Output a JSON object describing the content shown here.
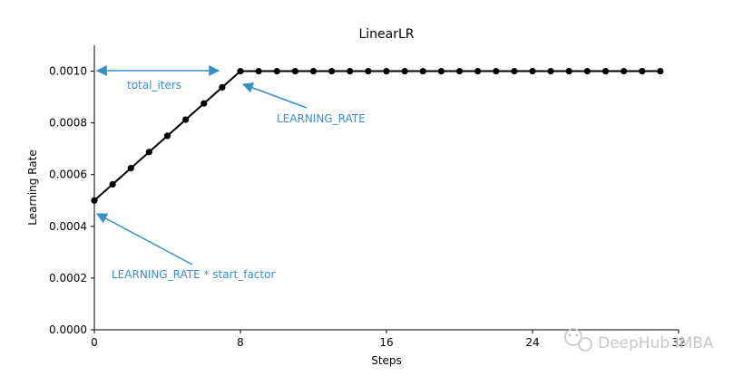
{
  "chart_data": {
    "type": "line",
    "title": "LinearLR",
    "xlabel": "Steps",
    "ylabel": "Learning Rate",
    "xlim": [
      0,
      32
    ],
    "ylim": [
      0,
      0.0011
    ],
    "x_ticks": [
      "0",
      "8",
      "16",
      "24",
      "32"
    ],
    "y_ticks": [
      "0.0000",
      "0.0002",
      "0.0004",
      "0.0006",
      "0.0008",
      "0.0010"
    ],
    "grid": false,
    "series": [
      {
        "color": "#000000",
        "marker": "circle",
        "x": [
          0,
          1,
          2,
          3,
          4,
          5,
          6,
          7,
          8,
          9,
          10,
          11,
          12,
          13,
          14,
          15,
          16,
          17,
          18,
          19,
          20,
          21,
          22,
          23,
          24,
          25,
          26,
          27,
          28,
          29,
          30,
          31
        ],
        "y": [
          0.0005,
          0.0005625,
          0.000625,
          0.0006875,
          0.00075,
          0.0008125,
          0.000875,
          0.0009375,
          0.001,
          0.001,
          0.001,
          0.001,
          0.001,
          0.001,
          0.001,
          0.001,
          0.001,
          0.001,
          0.001,
          0.001,
          0.001,
          0.001,
          0.001,
          0.001,
          0.001,
          0.001,
          0.001,
          0.001,
          0.001,
          0.001,
          0.001,
          0.001
        ]
      }
    ],
    "annotations": [
      {
        "text": "total_iters",
        "type": "double-arrow",
        "from": [
          0,
          0.001
        ],
        "to": [
          7,
          0.001
        ]
      },
      {
        "text": "LEARNING_RATE",
        "type": "arrow",
        "points_to": [
          8,
          0.001
        ]
      },
      {
        "text": "LEARNING_RATE * start_factor",
        "type": "arrow",
        "points_to": [
          0,
          0.0005
        ]
      }
    ],
    "annotation_color": "#3a8fcb"
  },
  "watermark": {
    "text": "DeepHub IMBA",
    "icon": "wechat-icon"
  }
}
